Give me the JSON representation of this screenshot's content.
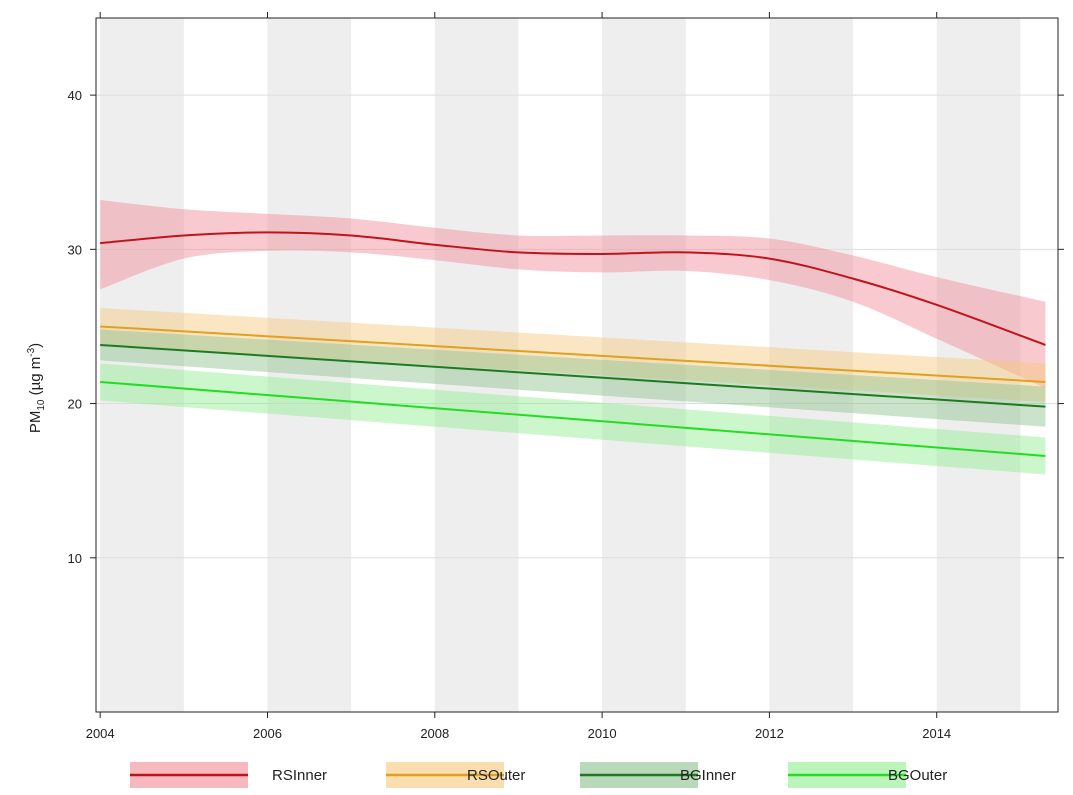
{
  "chart_data": {
    "type": "line",
    "title": "",
    "xlabel": "",
    "ylabel": {
      "base": "PM",
      "subscript": "10",
      "unit_prefix": " (µg m",
      "unit_superscript": "-3",
      "unit_suffix": ")"
    },
    "xlim": [
      2003.95,
      2015.45
    ],
    "ylim": [
      0,
      45
    ],
    "x_ticks": [
      2004,
      2006,
      2008,
      2010,
      2012,
      2014
    ],
    "x_tick_labels": [
      "2004",
      "2006",
      "2008",
      "2010",
      "2012",
      "2014"
    ],
    "y_ticks": [
      10,
      20,
      30,
      40
    ],
    "y_tick_labels": [
      "10",
      "20",
      "30",
      "40"
    ],
    "shaded_years": [
      2004,
      2006,
      2008,
      2010,
      2012,
      2014
    ],
    "grid": true,
    "legend_position": "bottom",
    "series": [
      {
        "name": "RSInner",
        "color": "#c0141c",
        "band_color": "#f08a94",
        "x": [
          2004,
          2005,
          2006,
          2007,
          2008,
          2009,
          2010,
          2011,
          2012,
          2013,
          2014,
          2015.3
        ],
        "values": [
          30.4,
          30.9,
          31.1,
          30.9,
          30.3,
          29.8,
          29.7,
          29.8,
          29.4,
          28.1,
          26.4,
          23.8
        ],
        "lower": [
          27.4,
          29.4,
          29.9,
          29.8,
          29.3,
          28.7,
          28.5,
          28.6,
          28.0,
          26.6,
          24.2,
          21.0
        ],
        "upper": [
          33.2,
          32.6,
          32.3,
          32.0,
          31.4,
          30.9,
          30.9,
          30.9,
          30.7,
          29.6,
          28.2,
          26.6
        ]
      },
      {
        "name": "RSOuter",
        "color": "#e0a020",
        "band_color": "#f7c87a",
        "x": [
          2004,
          2015.3
        ],
        "values": [
          25.0,
          21.4
        ],
        "lower": [
          23.8,
          20.1
        ],
        "upper": [
          26.2,
          22.6
        ]
      },
      {
        "name": "BGInner",
        "color": "#1e7a1e",
        "band_color": "#8cc08c",
        "x": [
          2004,
          2015.3
        ],
        "values": [
          23.8,
          19.8
        ],
        "lower": [
          22.8,
          18.5
        ],
        "upper": [
          24.8,
          21.1
        ]
      },
      {
        "name": "BGOuter",
        "color": "#22dd22",
        "band_color": "#8fee8f",
        "x": [
          2004,
          2015.3
        ],
        "values": [
          21.4,
          16.6
        ],
        "lower": [
          20.2,
          15.4
        ],
        "upper": [
          22.6,
          17.8
        ]
      }
    ]
  }
}
